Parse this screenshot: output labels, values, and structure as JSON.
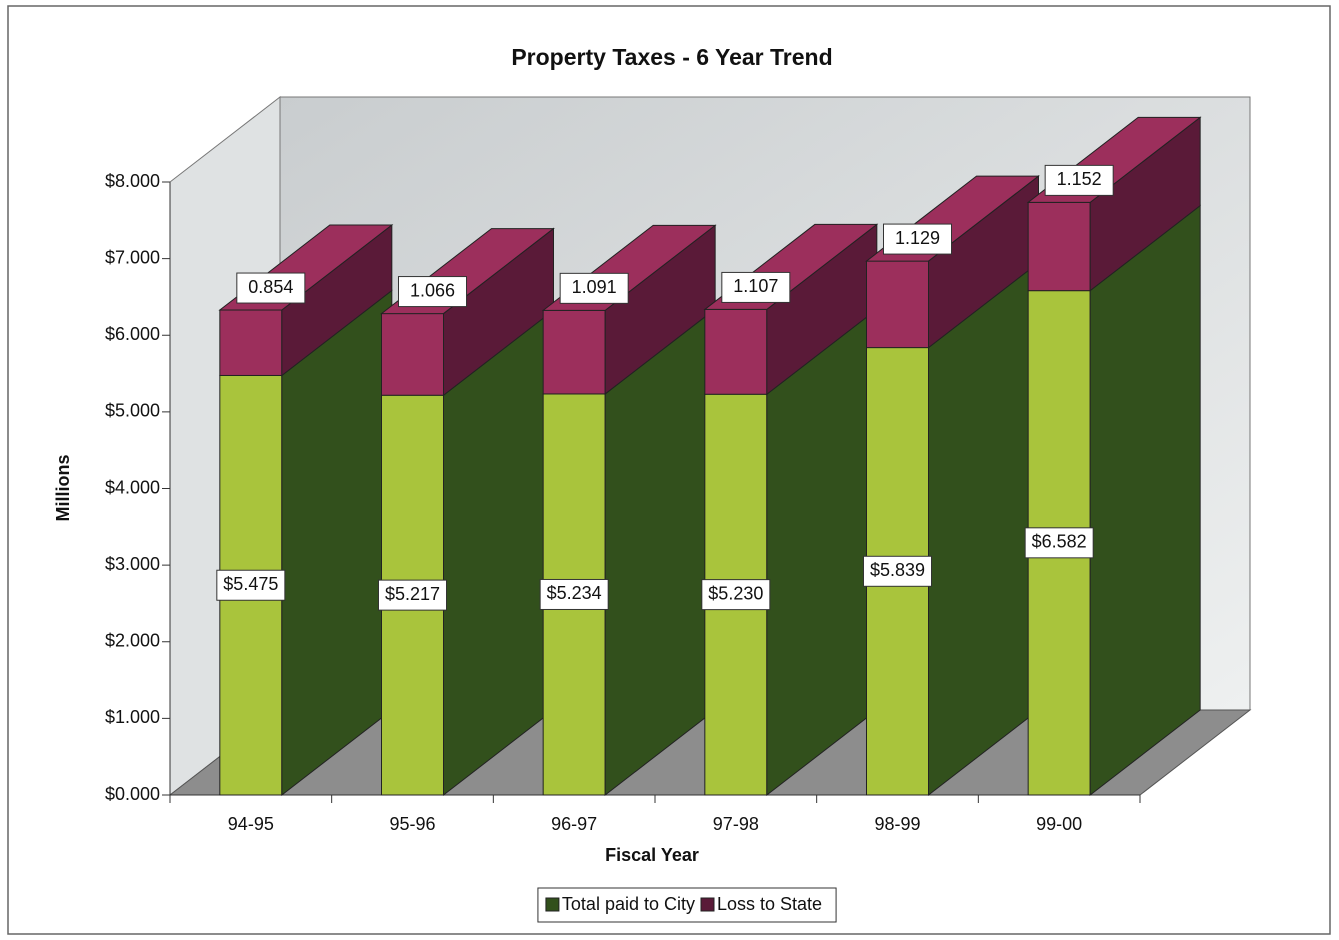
{
  "chart_data": {
    "type": "bar3d-stacked",
    "title": "Property Taxes - 6 Year Trend",
    "x_label": "Fiscal Year",
    "y_label": "Millions",
    "categories": [
      "94-95",
      "95-96",
      "96-97",
      "97-98",
      "98-99",
      "99-00"
    ],
    "series": [
      {
        "name": "Total paid to City",
        "color": "#a9c43c",
        "side_color": "#32501c",
        "values": [
          5.475,
          5.217,
          5.234,
          5.23,
          5.839,
          6.582
        ],
        "value_labels": [
          "$5.475",
          "$5.217",
          "$5.234",
          "$5.230",
          "$5.839",
          "$6.582"
        ]
      },
      {
        "name": "Loss to State",
        "color": "#9c2f5c",
        "side_color": "#5a1a38",
        "values": [
          0.854,
          1.066,
          1.091,
          1.107,
          1.129,
          1.152
        ]
      }
    ],
    "ylim": [
      0,
      8
    ],
    "yticks": [
      {
        "value": 0,
        "label": "$0.000"
      },
      {
        "value": 1,
        "label": "$1.000"
      },
      {
        "value": 2,
        "label": "$2.000"
      },
      {
        "value": 3,
        "label": "$3.000"
      },
      {
        "value": 4,
        "label": "$4.000"
      },
      {
        "value": 5,
        "label": "$5.000"
      },
      {
        "value": 6,
        "label": "$6.000"
      },
      {
        "value": 7,
        "label": "$7.000"
      },
      {
        "value": 8,
        "label": "$8.000"
      }
    ],
    "legend": "bottom"
  }
}
